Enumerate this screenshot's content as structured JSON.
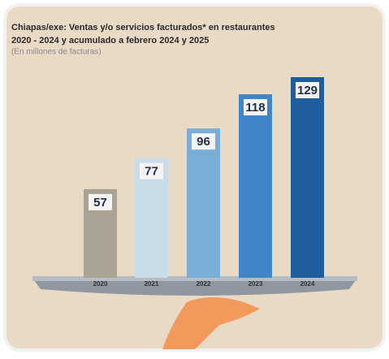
{
  "chart_data": {
    "type": "bar",
    "title": "Chiapas/exe: Ventas y/o servicios facturados* en restaurantes",
    "subtitle": "2020 - 2024 y acumulado a febrero 2024 y 2025",
    "note": "(En millones de facturas)",
    "categories": [
      "2020",
      "2021",
      "2022",
      "2023",
      "2024"
    ],
    "values": [
      57,
      77,
      96,
      118,
      129
    ],
    "colors": [
      "#aaa292",
      "#c9dde8",
      "#7aaed6",
      "#3f86c8",
      "#1f5e9e"
    ]
  }
}
